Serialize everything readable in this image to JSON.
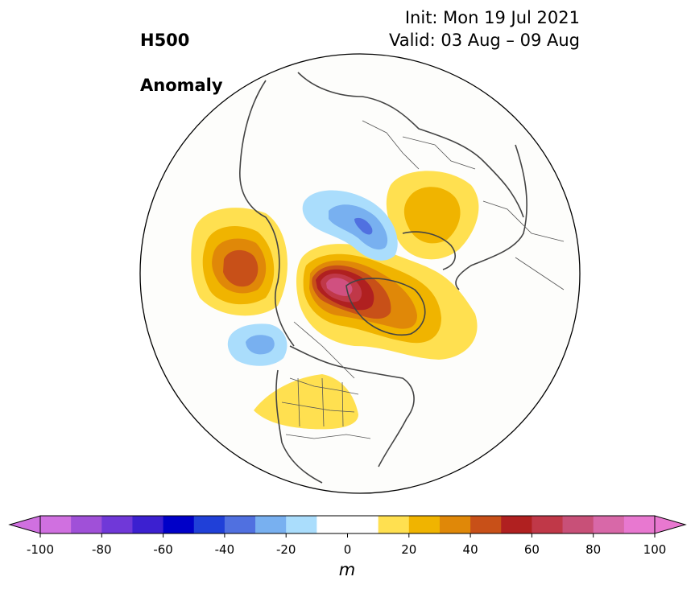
{
  "title": {
    "left_line1": "H500",
    "left_line2": "Anomaly",
    "init": "Init: Mon 19 Jul 2021",
    "valid": "Valid: 03 Aug – 09 Aug"
  },
  "colorbar": {
    "ticks": [
      "-100",
      "-80",
      "-60",
      "-40",
      "-20",
      "0",
      "20",
      "40",
      "60",
      "80",
      "100"
    ],
    "unit_label": "m",
    "levels": [
      -100,
      -90,
      -80,
      -70,
      -60,
      -50,
      -40,
      -30,
      -20,
      -10,
      10,
      20,
      30,
      40,
      50,
      60,
      70,
      80,
      90,
      100
    ],
    "colors": [
      "#d070e0",
      "#a050d8",
      "#7038d8",
      "#3c20d0",
      "#0000c8",
      "#2040d8",
      "#5070e0",
      "#78b0f0",
      "#aaddfc",
      "#ffffff",
      "#ffe050",
      "#f0b400",
      "#e08808",
      "#c85018",
      "#b02020",
      "#c03848",
      "#c85078",
      "#d868a8",
      "#e878d0"
    ],
    "extend_low_color": "#d070e0",
    "extend_high_color": "#e878d0"
  },
  "map": {
    "projection": "north-polar-stereographic",
    "anomaly_features": [
      {
        "name": "alaska-ridge",
        "sign": "positive",
        "max_level": 40
      },
      {
        "name": "greenland-ridge",
        "sign": "positive",
        "max_level": 80
      },
      {
        "name": "scandinavia-ridge",
        "sign": "positive",
        "max_level": 30
      },
      {
        "name": "central-us-ridge",
        "sign": "positive",
        "max_level": 20
      },
      {
        "name": "siberia-trough",
        "sign": "negative",
        "min_level": -40
      },
      {
        "name": "gulf-of-alaska-trough",
        "sign": "negative",
        "min_level": -30
      }
    ]
  }
}
